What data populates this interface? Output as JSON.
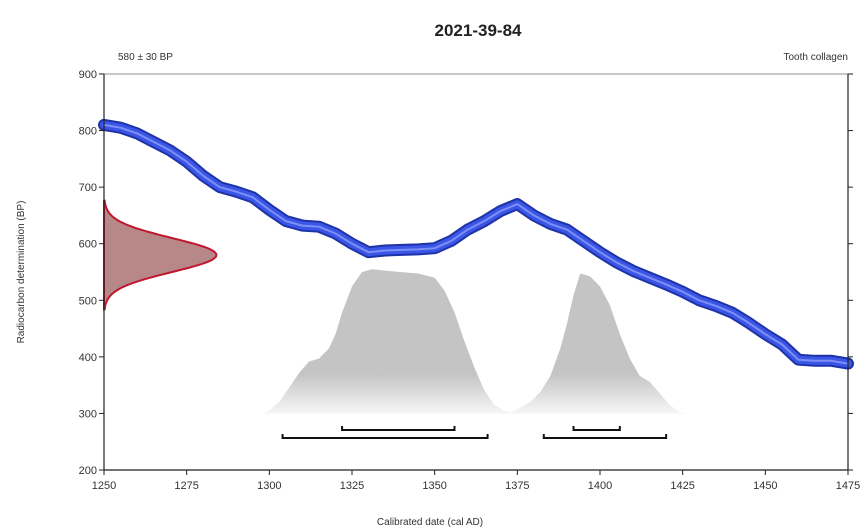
{
  "chart_data": {
    "type": "area",
    "title": "2021-39-84",
    "subtitle_left": "580 ± 30 BP",
    "subtitle_right": "Tooth collagen",
    "xlabel": "Calibrated date (cal AD)",
    "ylabel": "Radiocarbon determination (BP)",
    "xlim": [
      1250,
      1475
    ],
    "ylim": [
      200,
      900
    ],
    "x_ticks": [
      "1250",
      "1275",
      "1300",
      "1325",
      "1350",
      "1375",
      "1400",
      "1425",
      "1450",
      "1475"
    ],
    "y_ticks": [
      "200",
      "300",
      "400",
      "500",
      "600",
      "700",
      "800",
      "900"
    ],
    "calibration_curve": {
      "color": "#3b55e6",
      "points": [
        [
          1250,
          810
        ],
        [
          1255,
          805
        ],
        [
          1260,
          795
        ],
        [
          1265,
          780
        ],
        [
          1270,
          765
        ],
        [
          1275,
          745
        ],
        [
          1280,
          720
        ],
        [
          1285,
          700
        ],
        [
          1290,
          692
        ],
        [
          1295,
          682
        ],
        [
          1300,
          660
        ],
        [
          1305,
          640
        ],
        [
          1310,
          632
        ],
        [
          1315,
          630
        ],
        [
          1320,
          618
        ],
        [
          1325,
          600
        ],
        [
          1330,
          585
        ],
        [
          1335,
          588
        ],
        [
          1340,
          589
        ],
        [
          1345,
          590
        ],
        [
          1350,
          592
        ],
        [
          1355,
          605
        ],
        [
          1360,
          625
        ],
        [
          1365,
          640
        ],
        [
          1370,
          658
        ],
        [
          1375,
          670
        ],
        [
          1380,
          650
        ],
        [
          1385,
          635
        ],
        [
          1390,
          625
        ],
        [
          1395,
          605
        ],
        [
          1400,
          585
        ],
        [
          1405,
          567
        ],
        [
          1410,
          552
        ],
        [
          1415,
          540
        ],
        [
          1420,
          528
        ],
        [
          1425,
          515
        ],
        [
          1430,
          500
        ],
        [
          1435,
          490
        ],
        [
          1440,
          478
        ],
        [
          1445,
          460
        ],
        [
          1450,
          440
        ],
        [
          1455,
          422
        ],
        [
          1460,
          395
        ],
        [
          1465,
          393
        ],
        [
          1470,
          393
        ],
        [
          1475,
          388
        ]
      ]
    },
    "radiocarbon_distribution": {
      "mean": 580,
      "sigma": 30,
      "color": "#c0182e",
      "fill": "#a06060"
    },
    "calibrated_distribution": {
      "color": "#c4c4c4",
      "points": [
        [
          1298,
          0.0
        ],
        [
          1300,
          0.02
        ],
        [
          1303,
          0.08
        ],
        [
          1306,
          0.18
        ],
        [
          1309,
          0.28
        ],
        [
          1312,
          0.36
        ],
        [
          1315,
          0.38
        ],
        [
          1318,
          0.45
        ],
        [
          1320,
          0.55
        ],
        [
          1322,
          0.7
        ],
        [
          1325,
          0.88
        ],
        [
          1328,
          0.98
        ],
        [
          1331,
          1.0
        ],
        [
          1335,
          0.99
        ],
        [
          1340,
          0.98
        ],
        [
          1345,
          0.97
        ],
        [
          1350,
          0.94
        ],
        [
          1353,
          0.85
        ],
        [
          1356,
          0.7
        ],
        [
          1359,
          0.5
        ],
        [
          1362,
          0.32
        ],
        [
          1365,
          0.16
        ],
        [
          1368,
          0.06
        ],
        [
          1371,
          0.02
        ],
        [
          1373,
          0.01
        ],
        [
          1376,
          0.04
        ],
        [
          1379,
          0.08
        ],
        [
          1382,
          0.15
        ],
        [
          1385,
          0.26
        ],
        [
          1388,
          0.45
        ],
        [
          1390,
          0.62
        ],
        [
          1392,
          0.82
        ],
        [
          1394,
          0.97
        ],
        [
          1397,
          0.95
        ],
        [
          1400,
          0.88
        ],
        [
          1403,
          0.75
        ],
        [
          1406,
          0.55
        ],
        [
          1409,
          0.38
        ],
        [
          1412,
          0.26
        ],
        [
          1415,
          0.22
        ],
        [
          1418,
          0.14
        ],
        [
          1421,
          0.06
        ],
        [
          1424,
          0.01
        ],
        [
          1426,
          0.0
        ]
      ]
    },
    "ranges": {
      "sigma1": [
        [
          1322,
          1356
        ],
        [
          1392,
          1406
        ]
      ],
      "sigma2": [
        [
          1304,
          1366
        ],
        [
          1383,
          1420
        ]
      ]
    },
    "grid": false
  }
}
